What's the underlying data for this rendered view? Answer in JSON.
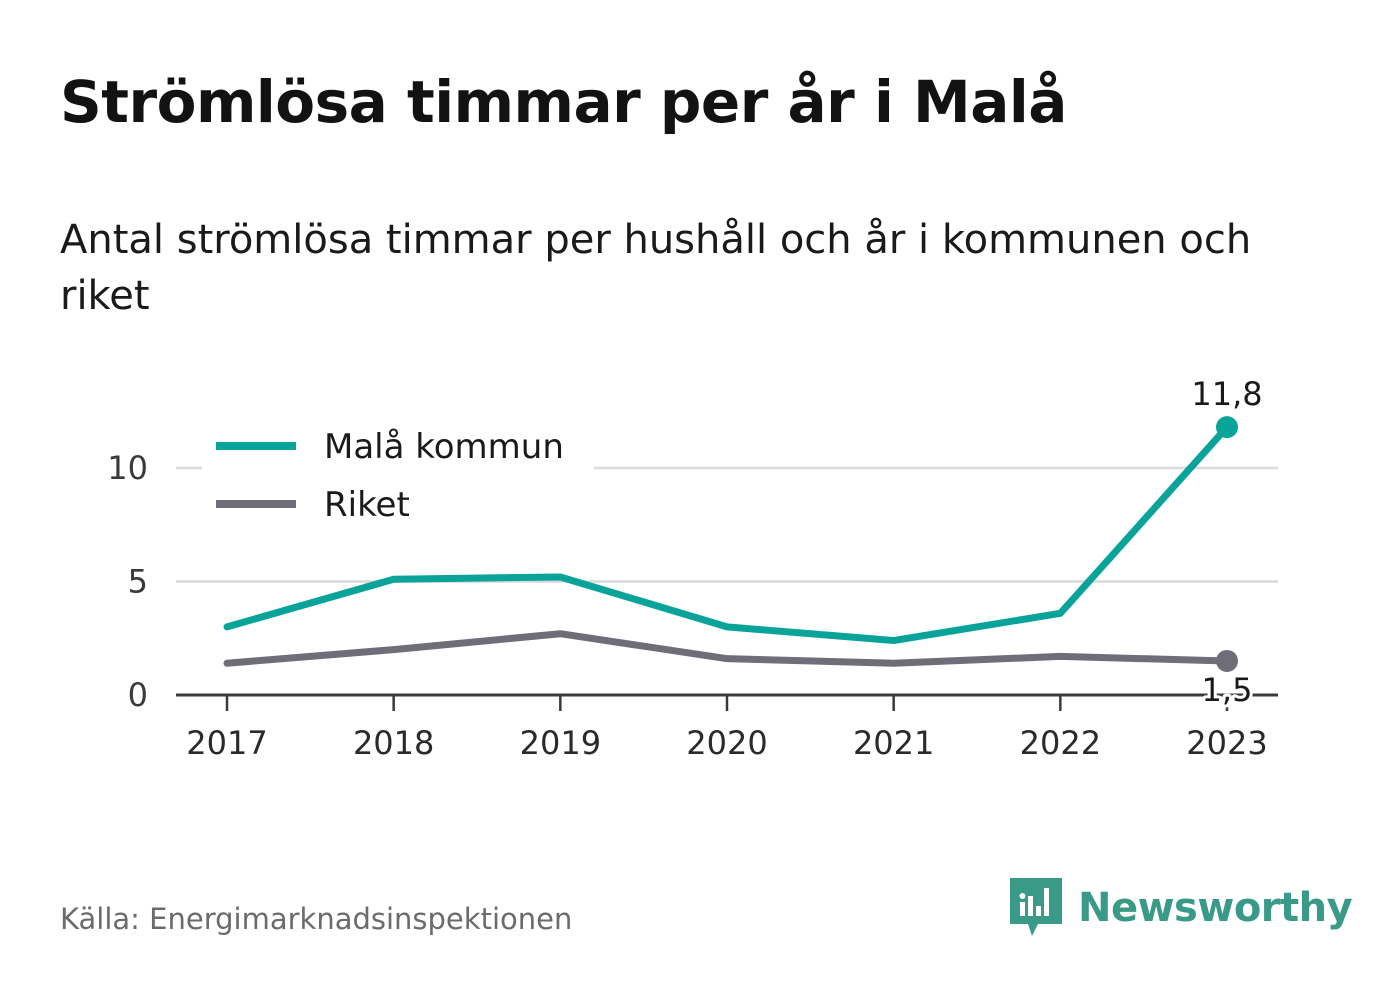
{
  "title": "Strömlösa timmar per år i Malå",
  "subtitle": "Antal strömlösa timmar per hushåll och år i kommunen och riket",
  "source": "Källa: Energimarknadsinspektionen",
  "brand": {
    "name": "Newsworthy",
    "icon": "newsworthy-logo-icon",
    "color": "#3a9a88"
  },
  "chart_data": {
    "type": "line",
    "title": "",
    "xlabel": "",
    "ylabel": "",
    "x": [
      "2017",
      "2018",
      "2019",
      "2020",
      "2021",
      "2022",
      "2023"
    ],
    "ylim": [
      0,
      12
    ],
    "yticks": [
      "0",
      "5",
      "10"
    ],
    "grid": true,
    "legend_position": "top-left",
    "series": [
      {
        "name": "Malå kommun",
        "color": "#0aa39a",
        "values": [
          3.0,
          5.1,
          5.2,
          3.0,
          2.4,
          3.6,
          11.8
        ],
        "end_label": "11,8"
      },
      {
        "name": "Riket",
        "color": "#6e6d78",
        "values": [
          1.4,
          2.0,
          2.7,
          1.6,
          1.4,
          1.7,
          1.5
        ],
        "end_label": "1,5"
      }
    ]
  }
}
